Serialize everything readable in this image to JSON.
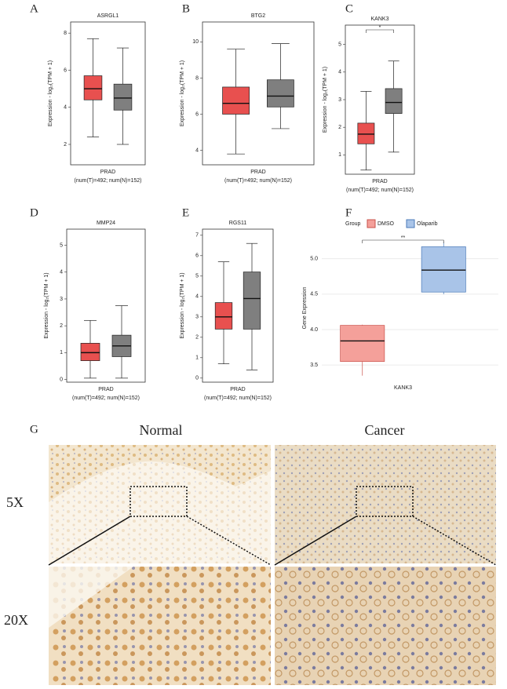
{
  "chart_data": [
    {
      "type": "box",
      "panel": "A",
      "title": "ASRGL1",
      "ylabel": "Expression - log₂(TPM + 1)",
      "xlabel": "PRAD",
      "subtitle": "(num(T)=492; num(N)=152)",
      "ylim": [
        0.9,
        8.6
      ],
      "yticks": [
        2,
        4,
        6,
        8
      ],
      "series": [
        {
          "color": "#e8504f",
          "min": 2.4,
          "q1": 4.4,
          "median": 5.0,
          "q3": 5.7,
          "max": 7.7
        },
        {
          "color": "#7f7f7f",
          "min": 2.0,
          "q1": 3.85,
          "median": 4.5,
          "q3": 5.25,
          "max": 7.2
        }
      ]
    },
    {
      "type": "box",
      "panel": "B",
      "title": "BTG2",
      "ylabel": "Expression - log₂(TPM + 1)",
      "xlabel": "PRAD",
      "subtitle": "(num(T)=492; num(N)=152)",
      "ylim": [
        3.2,
        11.1
      ],
      "yticks": [
        4,
        6,
        8,
        10
      ],
      "series": [
        {
          "color": "#e8504f",
          "min": 3.8,
          "q1": 6.0,
          "median": 6.6,
          "q3": 7.5,
          "max": 9.6
        },
        {
          "color": "#7f7f7f",
          "min": 5.2,
          "q1": 6.4,
          "median": 7.0,
          "q3": 7.9,
          "max": 9.9
        }
      ]
    },
    {
      "type": "box",
      "panel": "C",
      "title": "KANK3",
      "ylabel": "Expression - log₂(TPM + 1)",
      "xlabel": "PRAD",
      "subtitle": "(num(T)=492; num(N)=152)",
      "ylim": [
        0.3,
        5.7
      ],
      "yticks": [
        1,
        2,
        3,
        4,
        5
      ],
      "annotation": "*",
      "series": [
        {
          "color": "#e8504f",
          "min": 0.45,
          "q1": 1.4,
          "median": 1.75,
          "q3": 2.15,
          "max": 3.3
        },
        {
          "color": "#7f7f7f",
          "min": 1.1,
          "q1": 2.5,
          "median": 2.9,
          "q3": 3.4,
          "max": 4.4
        }
      ]
    },
    {
      "type": "box",
      "panel": "D",
      "title": "MMP24",
      "ylabel": "Expression - log₂(TPM + 1)",
      "xlabel": "PRAD",
      "subtitle": "(num(T)=492; num(N)=152)",
      "ylim": [
        -0.1,
        5.6
      ],
      "yticks": [
        0,
        1,
        2,
        3,
        4,
        5
      ],
      "series": [
        {
          "color": "#e8504f",
          "min": 0.05,
          "q1": 0.7,
          "median": 1.0,
          "q3": 1.35,
          "max": 2.2
        },
        {
          "color": "#7f7f7f",
          "min": 0.05,
          "q1": 0.85,
          "median": 1.25,
          "q3": 1.65,
          "max": 2.75
        }
      ]
    },
    {
      "type": "box",
      "panel": "E",
      "title": "RGS11",
      "ylabel": "Expression - log₂(TPM + 1)",
      "xlabel": "PRAD",
      "subtitle": "(num(T)=492; num(N)=152)",
      "ylim": [
        -0.2,
        7.3
      ],
      "yticks": [
        0,
        1,
        2,
        3,
        4,
        5,
        6,
        7
      ],
      "series": [
        {
          "color": "#e8504f",
          "min": 0.7,
          "q1": 2.4,
          "median": 3.0,
          "q3": 3.7,
          "max": 5.7
        },
        {
          "color": "#7f7f7f",
          "min": 0.4,
          "q1": 2.4,
          "median": 3.9,
          "q3": 5.2,
          "max": 6.6
        }
      ]
    },
    {
      "type": "box",
      "panel": "F",
      "ylabel": "Gene Expression",
      "categories": [
        "KANK3"
      ],
      "legend_title": "Group",
      "grid": true,
      "annotation": "**",
      "ylim": [
        3.28,
        5.33
      ],
      "yticks": [
        3.5,
        {
          "value": 4,
          "label": "4.0"
        },
        4.5,
        {
          "value": 5,
          "label": "5.0"
        }
      ],
      "series": [
        {
          "name": "DMSO",
          "color": "#f4a09a",
          "edge_color": "#c9504a",
          "min": 3.35,
          "q1": 3.55,
          "median": 3.84,
          "q3": 4.06,
          "max": 4.07
        },
        {
          "name": "Olaparib",
          "color": "#a9c4e8",
          "edge_color": "#4a7ab8",
          "min": 4.5,
          "q1": 4.53,
          "median": 4.84,
          "q3": 5.17,
          "max": 5.24
        }
      ]
    }
  ],
  "panel_g": {
    "label": "G",
    "columns": [
      "Normal",
      "Cancer"
    ],
    "rows": [
      "5X",
      "20X"
    ]
  }
}
